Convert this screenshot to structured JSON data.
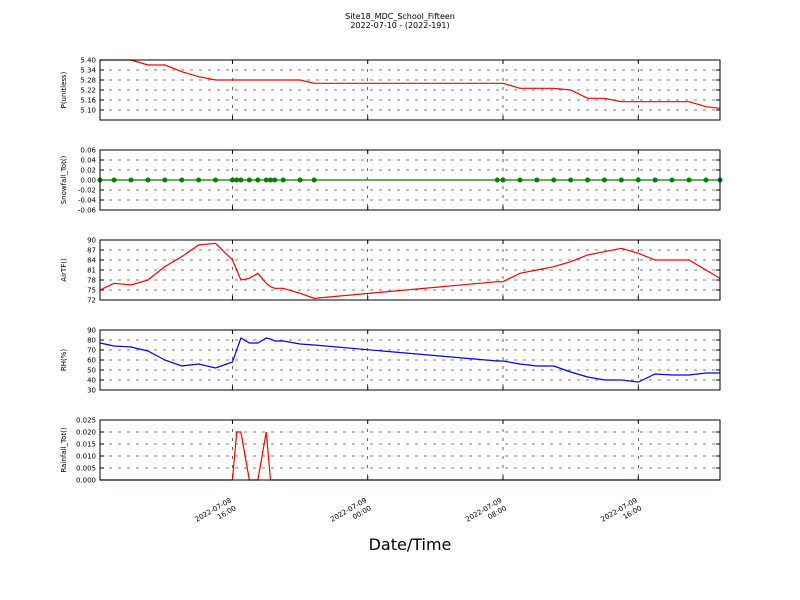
{
  "chart_data": [
    {
      "type": "line",
      "title": "Site18_MDC_School_Fifteen",
      "subtitle": "2022-07-10 - (2022-191)",
      "y_label": "P(unitless)",
      "color": "#ff0000",
      "grid": true,
      "x": [
        "2022-07-08 08:10",
        "2022-07-08 09:00",
        "2022-07-08 10:00",
        "2022-07-08 11:00",
        "2022-07-08 12:00",
        "2022-07-08 13:00",
        "2022-07-08 14:00",
        "2022-07-08 15:00",
        "2022-07-08 16:00",
        "2022-07-08 16:15",
        "2022-07-08 16:30",
        "2022-07-08 17:00",
        "2022-07-08 17:30",
        "2022-07-08 18:00",
        "2022-07-08 18:15",
        "2022-07-08 18:30",
        "2022-07-08 19:00",
        "2022-07-08 20:00",
        "2022-07-08 20:50",
        "2022-07-09 07:40",
        "2022-07-09 08:00",
        "2022-07-09 09:00",
        "2022-07-09 10:00",
        "2022-07-09 11:00",
        "2022-07-09 12:00",
        "2022-07-09 13:00",
        "2022-07-09 14:00",
        "2022-07-09 15:00",
        "2022-07-09 16:00",
        "2022-07-09 17:00",
        "2022-07-09 18:00",
        "2022-07-09 19:00",
        "2022-07-09 20:00",
        "2022-07-09 20:50"
      ],
      "values": [
        5.4,
        5.4,
        5.4,
        5.37,
        5.37,
        5.33,
        5.3,
        5.28,
        5.28,
        5.28,
        5.28,
        5.28,
        5.28,
        5.28,
        5.28,
        5.28,
        5.28,
        5.28,
        5.26,
        5.26,
        5.26,
        5.23,
        5.23,
        5.23,
        5.22,
        5.17,
        5.17,
        5.15,
        5.15,
        5.15,
        5.15,
        5.15,
        5.12,
        5.11
      ],
      "xlim": [
        "2022-07-08 08:10",
        "2022-07-09 20:50"
      ],
      "xticks": [
        "2022-07-08 16:00",
        "2022-07-09 00:00",
        "2022-07-09 08:00",
        "2022-07-09 16:00"
      ],
      "ylim": [
        5.04,
        5.4
      ],
      "yticks": [
        {
          "value": 5.1,
          "label": "5.10"
        },
        5.16,
        5.22,
        5.28,
        5.34,
        {
          "value": 5.4,
          "label": "5.40"
        }
      ]
    },
    {
      "type": "line",
      "y_label": "Snowfall_Tot()",
      "color": "#008000",
      "markers": true,
      "grid": true,
      "x": [
        "2022-07-08 08:10",
        "2022-07-08 09:00",
        "2022-07-08 10:00",
        "2022-07-08 11:00",
        "2022-07-08 12:00",
        "2022-07-08 13:00",
        "2022-07-08 14:00",
        "2022-07-08 15:00",
        "2022-07-08 16:00",
        "2022-07-08 16:15",
        "2022-07-08 16:30",
        "2022-07-08 17:00",
        "2022-07-08 17:30",
        "2022-07-08 18:00",
        "2022-07-08 18:15",
        "2022-07-08 18:30",
        "2022-07-08 19:00",
        "2022-07-08 20:00",
        "2022-07-08 20:50",
        "2022-07-09 07:40",
        "2022-07-09 08:00",
        "2022-07-09 09:00",
        "2022-07-09 10:00",
        "2022-07-09 11:00",
        "2022-07-09 12:00",
        "2022-07-09 13:00",
        "2022-07-09 14:00",
        "2022-07-09 15:00",
        "2022-07-09 16:00",
        "2022-07-09 17:00",
        "2022-07-09 18:00",
        "2022-07-09 19:00",
        "2022-07-09 20:00",
        "2022-07-09 20:50"
      ],
      "values": [
        0,
        0,
        0,
        0,
        0,
        0,
        0,
        0,
        0,
        0,
        0,
        0,
        0,
        0,
        0,
        0,
        0,
        0,
        0,
        0,
        0,
        0,
        0,
        0,
        0,
        0,
        0,
        0,
        0,
        0,
        0,
        0,
        0,
        0
      ],
      "xlim": [
        "2022-07-08 08:10",
        "2022-07-09 20:50"
      ],
      "xticks": [
        "2022-07-08 16:00",
        "2022-07-09 00:00",
        "2022-07-09 08:00",
        "2022-07-09 16:00"
      ],
      "ylim": [
        -0.06,
        0.06
      ],
      "yticks": [
        -0.06,
        -0.04,
        -0.02,
        {
          "value": 0,
          "label": "0.00"
        },
        0.02,
        0.04,
        0.06
      ]
    },
    {
      "type": "line",
      "y_label": "AirTF()",
      "color": "#ff0000",
      "grid": true,
      "x": [
        "2022-07-08 08:10",
        "2022-07-08 09:00",
        "2022-07-08 10:00",
        "2022-07-08 11:00",
        "2022-07-08 12:00",
        "2022-07-08 13:00",
        "2022-07-08 14:00",
        "2022-07-08 15:00",
        "2022-07-08 16:00",
        "2022-07-08 16:15",
        "2022-07-08 16:30",
        "2022-07-08 17:00",
        "2022-07-08 17:30",
        "2022-07-08 18:00",
        "2022-07-08 18:15",
        "2022-07-08 18:30",
        "2022-07-08 19:00",
        "2022-07-08 20:00",
        "2022-07-08 20:50",
        "2022-07-09 07:40",
        "2022-07-09 08:00",
        "2022-07-09 09:00",
        "2022-07-09 10:00",
        "2022-07-09 11:00",
        "2022-07-09 12:00",
        "2022-07-09 13:00",
        "2022-07-09 14:00",
        "2022-07-09 15:00",
        "2022-07-09 16:00",
        "2022-07-09 17:00",
        "2022-07-09 18:00",
        "2022-07-09 19:00",
        "2022-07-09 20:00",
        "2022-07-09 20:50"
      ],
      "values": [
        75,
        77,
        76.5,
        78,
        82,
        85,
        88.5,
        89,
        84,
        81,
        78,
        78.5,
        80,
        77,
        76,
        75.5,
        75.5,
        74,
        72.5,
        77.5,
        77.5,
        80,
        81,
        82,
        83.5,
        85.5,
        86.5,
        87.5,
        86,
        84,
        84,
        84,
        81,
        78.5
      ],
      "xlim": [
        "2022-07-08 08:10",
        "2022-07-09 20:50"
      ],
      "xticks": [
        "2022-07-08 16:00",
        "2022-07-09 00:00",
        "2022-07-09 08:00",
        "2022-07-09 16:00"
      ],
      "ylim": [
        72,
        90
      ],
      "yticks": [
        72,
        75,
        78,
        81,
        84,
        87,
        90
      ]
    },
    {
      "type": "line",
      "y_label": "RH(%)",
      "color": "#0000ff",
      "grid": true,
      "x": [
        "2022-07-08 08:10",
        "2022-07-08 09:00",
        "2022-07-08 10:00",
        "2022-07-08 11:00",
        "2022-07-08 12:00",
        "2022-07-08 13:00",
        "2022-07-08 14:00",
        "2022-07-08 15:00",
        "2022-07-08 16:00",
        "2022-07-08 16:15",
        "2022-07-08 16:30",
        "2022-07-08 17:00",
        "2022-07-08 17:30",
        "2022-07-08 18:00",
        "2022-07-08 18:15",
        "2022-07-08 18:30",
        "2022-07-08 19:00",
        "2022-07-08 20:00",
        "2022-07-08 20:50",
        "2022-07-09 07:40",
        "2022-07-09 08:00",
        "2022-07-09 09:00",
        "2022-07-09 10:00",
        "2022-07-09 11:00",
        "2022-07-09 12:00",
        "2022-07-09 13:00",
        "2022-07-09 14:00",
        "2022-07-09 15:00",
        "2022-07-09 16:00",
        "2022-07-09 17:00",
        "2022-07-09 18:00",
        "2022-07-09 19:00",
        "2022-07-09 20:00",
        "2022-07-09 20:50"
      ],
      "values": [
        77,
        74,
        73,
        69,
        60,
        54,
        56,
        52,
        58,
        70,
        82,
        77,
        77,
        82,
        81,
        79,
        79,
        76,
        75,
        59,
        59,
        56,
        54,
        54,
        48,
        43,
        40,
        40,
        38,
        46,
        45,
        45,
        47,
        47
      ],
      "xlim": [
        "2022-07-08 08:10",
        "2022-07-09 20:50"
      ],
      "xticks": [
        "2022-07-08 16:00",
        "2022-07-09 00:00",
        "2022-07-09 08:00",
        "2022-07-09 16:00"
      ],
      "ylim": [
        30,
        90
      ],
      "yticks": [
        30,
        40,
        50,
        60,
        70,
        80,
        90
      ]
    },
    {
      "type": "line",
      "y_label": "Rainfall_Tot()",
      "x_label": "Date/Time",
      "color": "#ff0000",
      "grid": true,
      "show_xtick_labels": true,
      "x": [
        "2022-07-08 08:10",
        "2022-07-08 09:00",
        "2022-07-08 10:00",
        "2022-07-08 11:00",
        "2022-07-08 12:00",
        "2022-07-08 13:00",
        "2022-07-08 14:00",
        "2022-07-08 15:00",
        "2022-07-08 16:00",
        "2022-07-08 16:15",
        "2022-07-08 16:30",
        "2022-07-08 17:00",
        "2022-07-08 17:30",
        "2022-07-08 18:00",
        "2022-07-08 18:15",
        "2022-07-08 18:30",
        "2022-07-08 19:00",
        "2022-07-08 20:00",
        "2022-07-08 20:50",
        "2022-07-09 07:40",
        "2022-07-09 08:00",
        "2022-07-09 09:00",
        "2022-07-09 10:00",
        "2022-07-09 11:00",
        "2022-07-09 12:00",
        "2022-07-09 13:00",
        "2022-07-09 14:00",
        "2022-07-09 15:00",
        "2022-07-09 16:00",
        "2022-07-09 17:00",
        "2022-07-09 18:00",
        "2022-07-09 19:00",
        "2022-07-09 20:00",
        "2022-07-09 20:50"
      ],
      "values": [
        0,
        0,
        0,
        0,
        0,
        0,
        0,
        0,
        0,
        0.02,
        0.02,
        0,
        0,
        0.02,
        0,
        0,
        0,
        0,
        0,
        0,
        0,
        0,
        0,
        0,
        0,
        0,
        0,
        0,
        0,
        0,
        0,
        0,
        0,
        0
      ],
      "xlim": [
        "2022-07-08 08:10",
        "2022-07-09 20:50"
      ],
      "xticks": [
        "2022-07-08 16:00",
        "2022-07-09 00:00",
        "2022-07-09 08:00",
        "2022-07-09 16:00"
      ],
      "ylim": [
        0,
        0.025
      ],
      "yticks": [
        {
          "value": 0,
          "label": "0.000"
        },
        0.005,
        {
          "value": 0.01,
          "label": "0.010"
        },
        0.015,
        {
          "value": 0.02,
          "label": "0.020"
        },
        0.025
      ]
    }
  ]
}
